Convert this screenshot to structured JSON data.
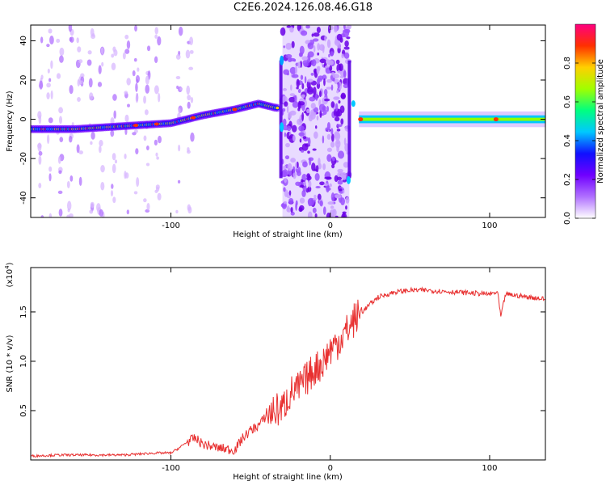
{
  "title": "C2E6.2024.126.08.46.G18",
  "chart_data": [
    {
      "type": "heatmap",
      "xlabel": "Height of straight line (km)",
      "ylabel": "Frequency (Hz)",
      "xlim": [
        -188,
        135
      ],
      "ylim": [
        -50,
        48
      ],
      "xticks": [
        -100,
        0,
        100
      ],
      "yticks": [
        -40,
        -20,
        0,
        20,
        40
      ],
      "colorbar": {
        "label": "Normalized spectral amplitude",
        "range": [
          0.0,
          1.0
        ],
        "ticks": [
          0.0,
          0.2,
          0.4,
          0.6,
          0.8
        ],
        "tick_labels": [
          "0.0",
          "0.2",
          "0.4",
          "0.6",
          "0.8"
        ],
        "colors": [
          "#ffffff",
          "#b070ff",
          "#7000ff",
          "#1010ff",
          "#00c8ff",
          "#00ff80",
          "#a0ff00",
          "#ffd000",
          "#ff3000",
          "#ff0080"
        ]
      },
      "main_ridge": [
        {
          "x": -188,
          "y": -5
        },
        {
          "x": -160,
          "y": -5
        },
        {
          "x": -140,
          "y": -4
        },
        {
          "x": -120,
          "y": -3
        },
        {
          "x": -100,
          "y": -2
        },
        {
          "x": -80,
          "y": 2
        },
        {
          "x": -60,
          "y": 5
        },
        {
          "x": -45,
          "y": 8
        },
        {
          "x": -35,
          "y": 6
        },
        {
          "x": 18,
          "y": 0
        },
        {
          "x": 50,
          "y": 0
        },
        {
          "x": 104,
          "y": 0
        },
        {
          "x": 135,
          "y": 0
        }
      ],
      "noisy_region": {
        "x_from": -30,
        "x_to": 12
      }
    },
    {
      "type": "line",
      "xlabel": "Height of straight line (km)",
      "ylabel": "SNR (10 * v/v)",
      "exponent_label": "(x10",
      "exponent": "4",
      "xlim": [
        -188,
        135
      ],
      "ylim": [
        0.0,
        1.95
      ],
      "xticks": [
        -100,
        0,
        100
      ],
      "yticks": [
        0.5,
        1.0,
        1.5
      ],
      "ytick_labels": [
        "0.5",
        "1.0",
        "1.5"
      ],
      "series": [
        {
          "color": "#e83030",
          "x": [
            -188,
            -170,
            -150,
            -130,
            -120,
            -110,
            -100,
            -95,
            -90,
            -85,
            -80,
            -70,
            -60,
            -55,
            -50,
            -45,
            -40,
            -35,
            -30,
            -25,
            -20,
            -15,
            -10,
            -5,
            0,
            5,
            10,
            15,
            20,
            25,
            30,
            40,
            50,
            60,
            70,
            80,
            90,
            100,
            105,
            107,
            110,
            120,
            135
          ],
          "y": [
            0.04,
            0.05,
            0.05,
            0.05,
            0.06,
            0.07,
            0.07,
            0.12,
            0.18,
            0.22,
            0.16,
            0.12,
            0.1,
            0.22,
            0.3,
            0.35,
            0.45,
            0.5,
            0.52,
            0.68,
            0.72,
            0.82,
            0.92,
            0.98,
            1.12,
            1.2,
            1.3,
            1.42,
            1.5,
            1.58,
            1.65,
            1.7,
            1.72,
            1.72,
            1.71,
            1.7,
            1.69,
            1.68,
            1.7,
            1.45,
            1.68,
            1.66,
            1.63
          ]
        }
      ]
    }
  ]
}
